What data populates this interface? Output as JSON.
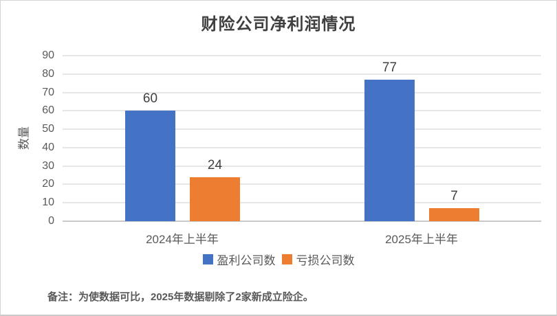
{
  "chart_data": {
    "type": "bar",
    "title": "财险公司净利润情况",
    "ylabel": "数量",
    "xlabel": "",
    "categories": [
      "2024年上半年",
      "2025年上半年"
    ],
    "series": [
      {
        "name": "盈利公司数",
        "color": "#4472C4",
        "values": [
          60,
          77
        ]
      },
      {
        "name": "亏损公司数",
        "color": "#ED7D31",
        "values": [
          24,
          7
        ]
      }
    ],
    "ylim": [
      0,
      90
    ],
    "ytick_step": 10,
    "grid": true,
    "legend_position": "bottom"
  },
  "note": "备注：为使数据可比，2025年数据剔除了2家新成立险企。",
  "colors": {
    "profit_series": "#4472C4",
    "loss_series": "#ED7D31",
    "gridline": "#e6e6e6",
    "axis_text": "#595959",
    "title_text": "#3f3f3f"
  }
}
